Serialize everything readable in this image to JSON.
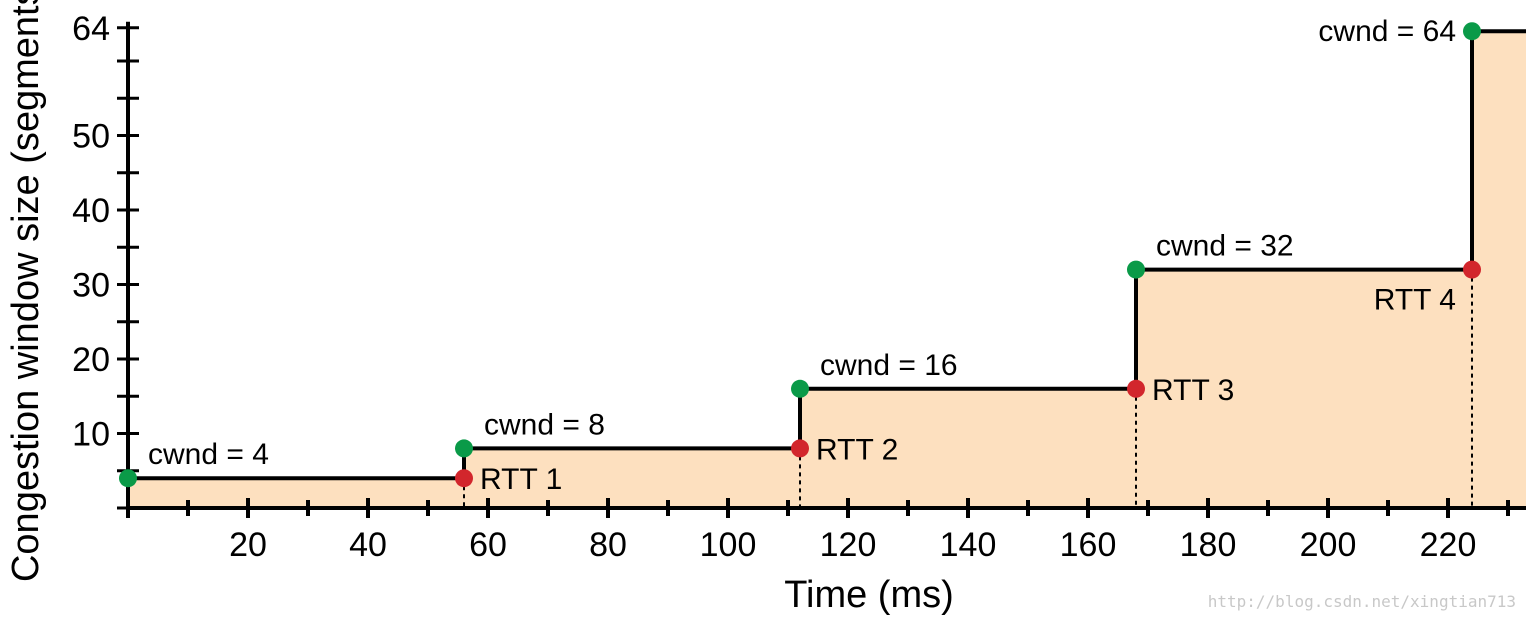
{
  "chart_data": {
    "type": "line",
    "xlabel": "Time (ms)",
    "ylabel": "Congestion window size (segments)",
    "xlim": [
      0,
      233
    ],
    "ylim": [
      0,
      65
    ],
    "x_ticks": [
      20,
      40,
      60,
      80,
      100,
      120,
      140,
      160,
      180,
      200,
      220
    ],
    "y_ticks": [
      10,
      20,
      30,
      40,
      50,
      64
    ],
    "y_minor_step": 5,
    "x_minor_step": 10,
    "step_series": {
      "x": [
        0,
        56,
        56,
        112,
        112,
        168,
        168,
        224,
        224,
        233
      ],
      "y": [
        4,
        4,
        8,
        8,
        16,
        16,
        32,
        32,
        64,
        64
      ]
    },
    "fill_color": "#fde0bf",
    "line_color": "#000000",
    "cwnd_points": [
      {
        "x": 0,
        "y": 4,
        "label": "cwnd = 4"
      },
      {
        "x": 56,
        "y": 8,
        "label": "cwnd = 8"
      },
      {
        "x": 112,
        "y": 16,
        "label": "cwnd = 16"
      },
      {
        "x": 168,
        "y": 32,
        "label": "cwnd = 32"
      },
      {
        "x": 224,
        "y": 64,
        "label": "cwnd = 64"
      }
    ],
    "rtt_points": [
      {
        "x": 56,
        "y": 4,
        "label": "RTT 1"
      },
      {
        "x": 112,
        "y": 8,
        "label": "RTT 2"
      },
      {
        "x": 168,
        "y": 16,
        "label": "RTT 3"
      },
      {
        "x": 224,
        "y": 32,
        "label": "RTT 4"
      }
    ],
    "cwnd_color": "#0a9a48",
    "rtt_color": "#d2262c",
    "grid": false
  },
  "watermark": "http://blog.csdn.net/xingtian713"
}
